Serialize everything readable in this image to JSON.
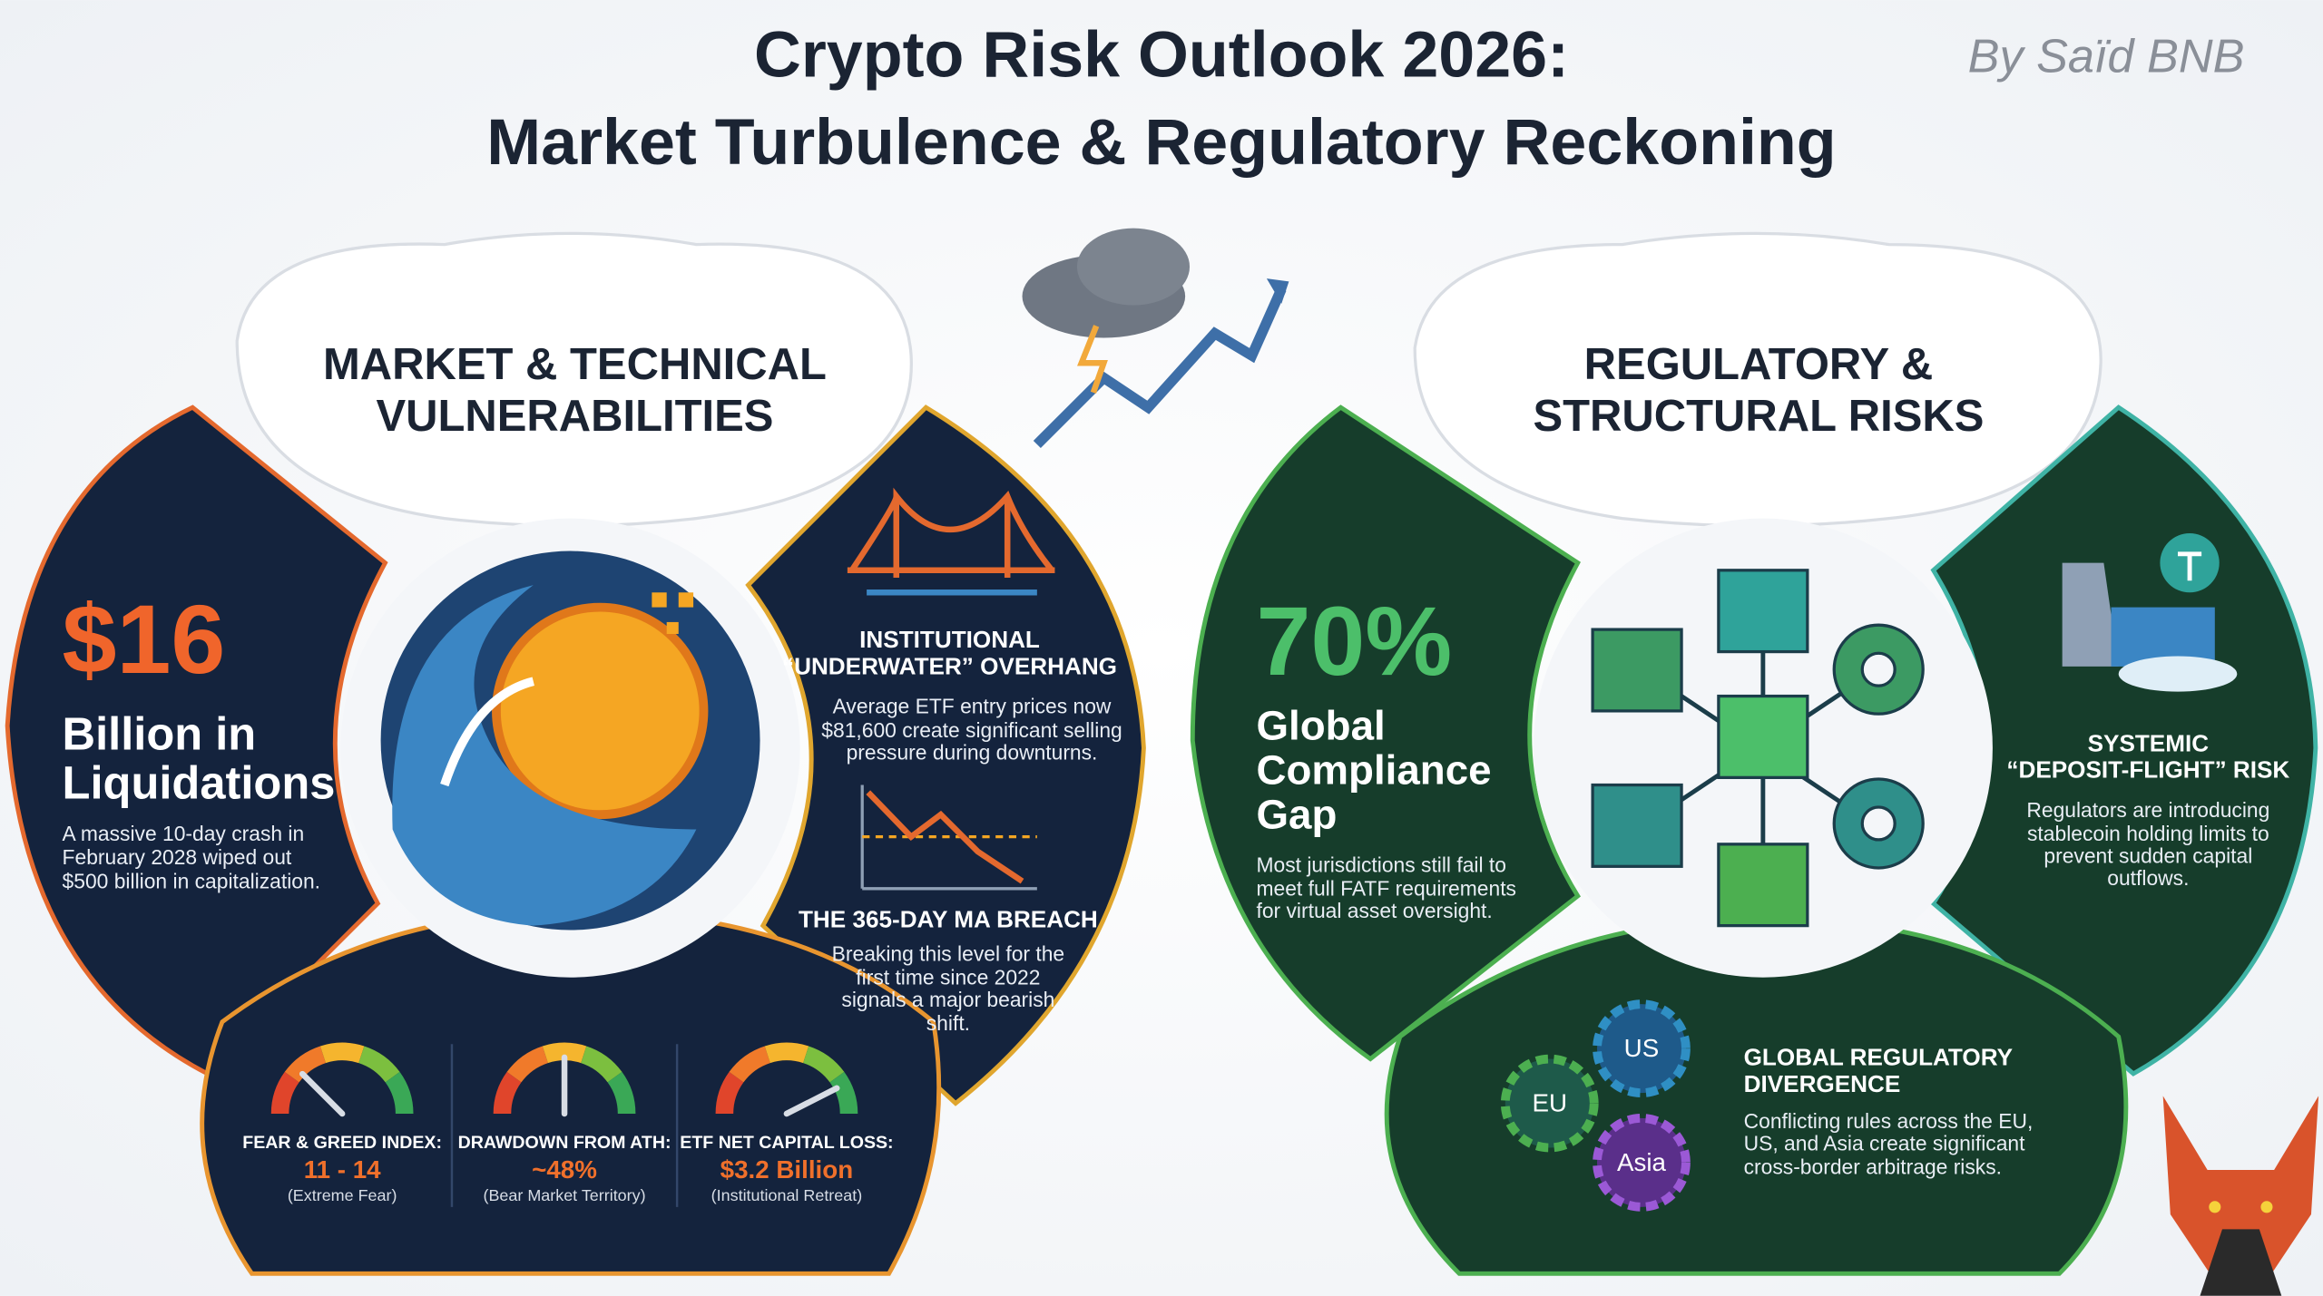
{
  "header": {
    "title_lines": [
      "Crypto Risk Outlook 2026:",
      "Market Turbulence & Regulatory Reckoning"
    ],
    "author": "By Saïd BNB"
  },
  "market": {
    "heading_lines": [
      "MARKET & TECHNICAL",
      "VULNERABILITIES"
    ],
    "liquidations": {
      "value": "$16",
      "label_lines": [
        "Billion in",
        "Liquidations"
      ],
      "description_lines": [
        "A massive 10-day crash in",
        "February 2028 wiped out",
        "$500 billion in capitalization."
      ]
    },
    "overhang": {
      "title_lines": [
        "INSTITUTIONAL",
        "“UNDERWATER” OVERHANG"
      ],
      "description_lines": [
        "Average ETF entry prices now",
        "$81,600 create significant selling",
        "pressure during downturns."
      ]
    },
    "ma_breach": {
      "title": "THE 365-DAY MA BREACH",
      "description_lines": [
        "Breaking this level for the",
        "first time since 2022",
        "signals a major bearish",
        "shift."
      ]
    },
    "gauges": [
      {
        "title": "FEAR & GREED INDEX:",
        "value": "11 - 14",
        "note": "(Extreme Fear)"
      },
      {
        "title": "DRAWDOWN FROM ATH:",
        "value": "~48%",
        "note": "(Bear Market Territory)"
      },
      {
        "title": "ETF NET CAPITAL LOSS:",
        "value": "$3.2 Billion",
        "note": "(Institutional Retreat)"
      }
    ]
  },
  "regulatory": {
    "heading_lines": [
      "REGULATORY &",
      "STRUCTURAL RISKS"
    ],
    "compliance": {
      "value": "70%",
      "label_lines": [
        "Global",
        "Compliance",
        "Gap"
      ],
      "description_lines": [
        "Most jurisdictions still fail to",
        "meet full FATF requirements",
        "for virtual asset oversight."
      ]
    },
    "deposit_flight": {
      "title_lines": [
        "SYSTEMIC",
        "“DEPOSIT-FLIGHT” RISK"
      ],
      "description_lines": [
        "Regulators are introducing",
        "stablecoin holding limits to",
        "prevent sudden capital",
        "outflows."
      ]
    },
    "divergence": {
      "regions": [
        "US",
        "EU",
        "Asia"
      ],
      "title_lines": [
        "GLOBAL REGULATORY",
        "DIVERGENCE"
      ],
      "description_lines": [
        "Conflicting rules across the EU,",
        "US, and Asia create significant",
        "cross-border arbitrage risks."
      ]
    }
  }
}
